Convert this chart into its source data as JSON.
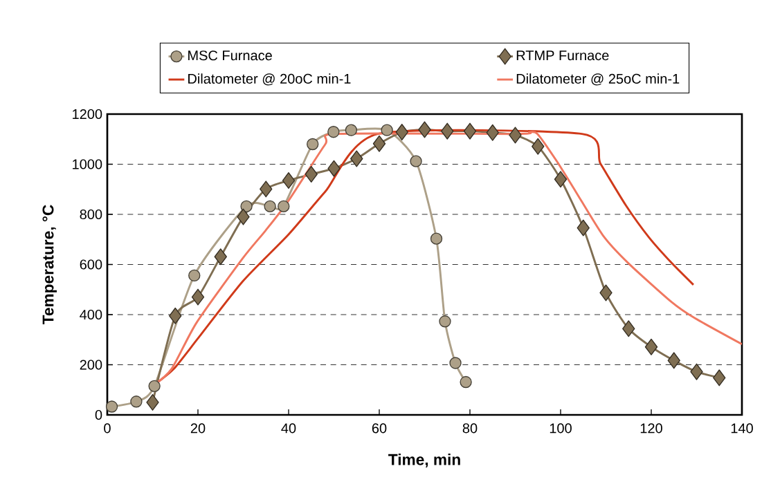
{
  "chart_data": {
    "type": "line",
    "xlabel": "Time, min",
    "ylabel": "Temperature, °C",
    "xlim": [
      0,
      140
    ],
    "xticks": [
      0,
      20,
      40,
      60,
      80,
      100,
      120,
      140
    ],
    "ylim": [
      0,
      1200
    ],
    "yticks": [
      0,
      200,
      400,
      600,
      800,
      1000,
      1200
    ],
    "grid": "y",
    "legend": "top",
    "series": [
      {
        "name": "MSC Furnace",
        "color": "#ada088",
        "marker": "circle",
        "x": [
          1.0,
          6.4,
          10.4,
          19.2,
          30.7,
          35.9,
          38.9,
          45.3,
          49.9,
          53.8,
          61.7,
          68.1,
          72.6,
          74.5,
          76.8,
          79.1
        ],
        "values": [
          33,
          53,
          115,
          556,
          832,
          832,
          832,
          1080,
          1129,
          1136,
          1136,
          1012,
          703,
          373,
          207,
          131
        ]
      },
      {
        "name": "RTMP Furnace",
        "color": "#7f6e52",
        "marker": "diamond",
        "x": [
          10,
          15,
          20,
          25,
          30,
          35,
          40,
          45,
          50,
          55,
          60,
          65,
          70,
          75,
          80,
          85,
          90,
          95,
          100,
          105,
          110,
          115,
          120,
          125,
          130,
          135
        ],
        "values": [
          50,
          395,
          470,
          631,
          790,
          901,
          935,
          960,
          983,
          1022,
          1082,
          1128,
          1138,
          1132,
          1132,
          1126,
          1116,
          1071,
          940,
          746,
          487,
          344,
          271,
          217,
          172,
          148
        ]
      },
      {
        "name": "Dilatometer @ 20oC min-1",
        "color": "#d03a1a",
        "marker": "none",
        "x": [
          10,
          14.7,
          20,
          29.9,
          40,
          48.1,
          59.7,
          104.7,
          108.8,
          114.4,
          119.5,
          124.5,
          129.3
        ],
        "values": [
          115,
          184,
          305,
          533,
          720,
          891,
          1121,
          1121,
          1002,
          836,
          708,
          606,
          519
        ]
      },
      {
        "name": "Dilatometer @ 25oC min-1",
        "color": "#f07860",
        "marker": "none",
        "x": [
          10,
          14.2,
          19.7,
          29.9,
          34.9,
          40,
          48.1,
          50.6,
          90.6,
          93.1,
          94.9,
          99.2,
          103.3,
          109.3,
          114.9,
          124.5,
          129.6,
          140
        ],
        "values": [
          115,
          184,
          368,
          625,
          735,
          855,
          1080,
          1121,
          1121,
          1128,
          1121,
          1011,
          892,
          717,
          606,
          450,
          386,
          282
        ]
      }
    ]
  }
}
